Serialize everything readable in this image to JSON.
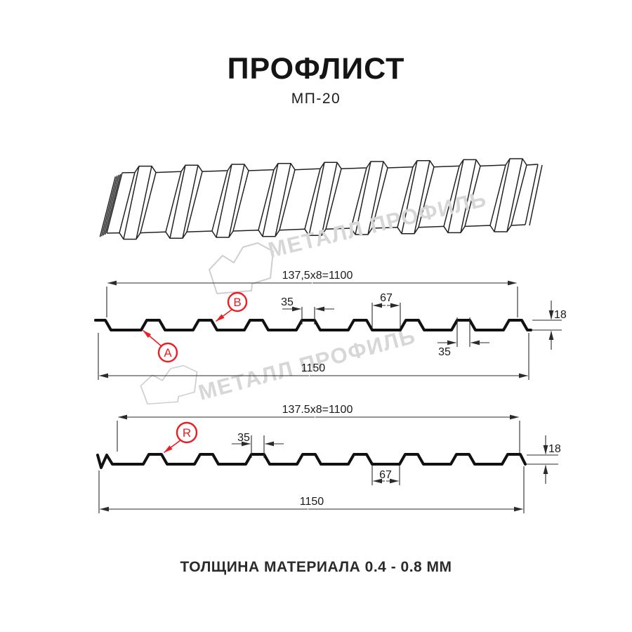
{
  "header": {
    "title": "ПРОФЛИСТ",
    "subtitle": "МП-20"
  },
  "watermark": {
    "brand": "МЕТАЛЛ ПРОФИЛЬ"
  },
  "diagrams": {
    "top": {
      "module_width": "137,5x8=1100",
      "overall_width": "1150",
      "rib_top_width": "35",
      "rib_bottom_width": "35",
      "valley_width": "67",
      "height": "18",
      "label_a": "A",
      "label_b": "B"
    },
    "bottom": {
      "module_width": "137.5x8=1100",
      "overall_width": "1150",
      "rib_top_width": "35",
      "valley_width": "67",
      "height": "18",
      "label_r": "R"
    }
  },
  "footer": {
    "note": "ТОЛЩИНА МАТЕРИАЛА 0.4 - 0.8 ММ"
  },
  "colors": {
    "accent_red": "#ee1c23",
    "line": "#1a1a1a",
    "watermark": "#d7d7d7"
  }
}
